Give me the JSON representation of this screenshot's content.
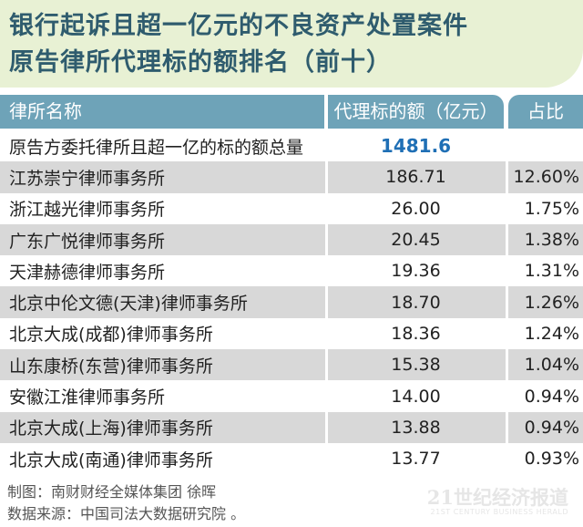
{
  "title": {
    "line1": "银行起诉且超一亿元的不良资产处置案件",
    "line2": "原告律所代理标的额排名（前十）"
  },
  "chart_data": {
    "type": "table",
    "columns": [
      "律所名称",
      "代理标的额（亿元）",
      "占比"
    ],
    "rows": [
      {
        "name": "原告方委托律所且超一亿的标的额总量",
        "amount": "1481.6",
        "share": "",
        "highlight": true,
        "shade": false
      },
      {
        "name": "江苏崇宁律师事务所",
        "amount": "186.71",
        "share": "12.60%",
        "shade": true
      },
      {
        "name": "浙江越光律师事务所",
        "amount": "26.00",
        "share": "1.75%",
        "shade": false
      },
      {
        "name": "广东广悦律师事务所",
        "amount": "20.45",
        "share": "1.38%",
        "shade": true
      },
      {
        "name": "天津赫德律师事务所",
        "amount": "19.36",
        "share": "1.31%",
        "shade": false
      },
      {
        "name": "北京中伦文德(天津)律师事务所",
        "amount": "18.70",
        "share": "1.26%",
        "shade": true
      },
      {
        "name": "北京大成(成都)律师事务所",
        "amount": "18.36",
        "share": "1.24%",
        "shade": false
      },
      {
        "name": "山东康桥(东营)律师事务所",
        "amount": "15.38",
        "share": "1.04%",
        "shade": true
      },
      {
        "name": "安徽江淮律师事务所",
        "amount": "14.00",
        "share": "0.94%",
        "shade": false
      },
      {
        "name": "北京大成(上海)律师事务所",
        "amount": "13.88",
        "share": "0.94%",
        "shade": true
      },
      {
        "name": "北京大成(南通)律师事务所",
        "amount": "13.77",
        "share": "0.93%",
        "shade": false
      }
    ]
  },
  "footer": {
    "credit": "制图：南财财经全媒体集团 徐晖",
    "source": "数据来源：中国司法大数据研究院 。"
  },
  "watermark": {
    "main": "21世纪经济报道",
    "sub": "21ST CENTURY BUSINESS HERALD"
  },
  "colors": {
    "title_bg": "#e8f1d4",
    "title_text": "#2f5c6e",
    "header_bg": "#6ea3b8",
    "row_shade": "#d8d8d8",
    "highlight": "#1f6fb5"
  }
}
